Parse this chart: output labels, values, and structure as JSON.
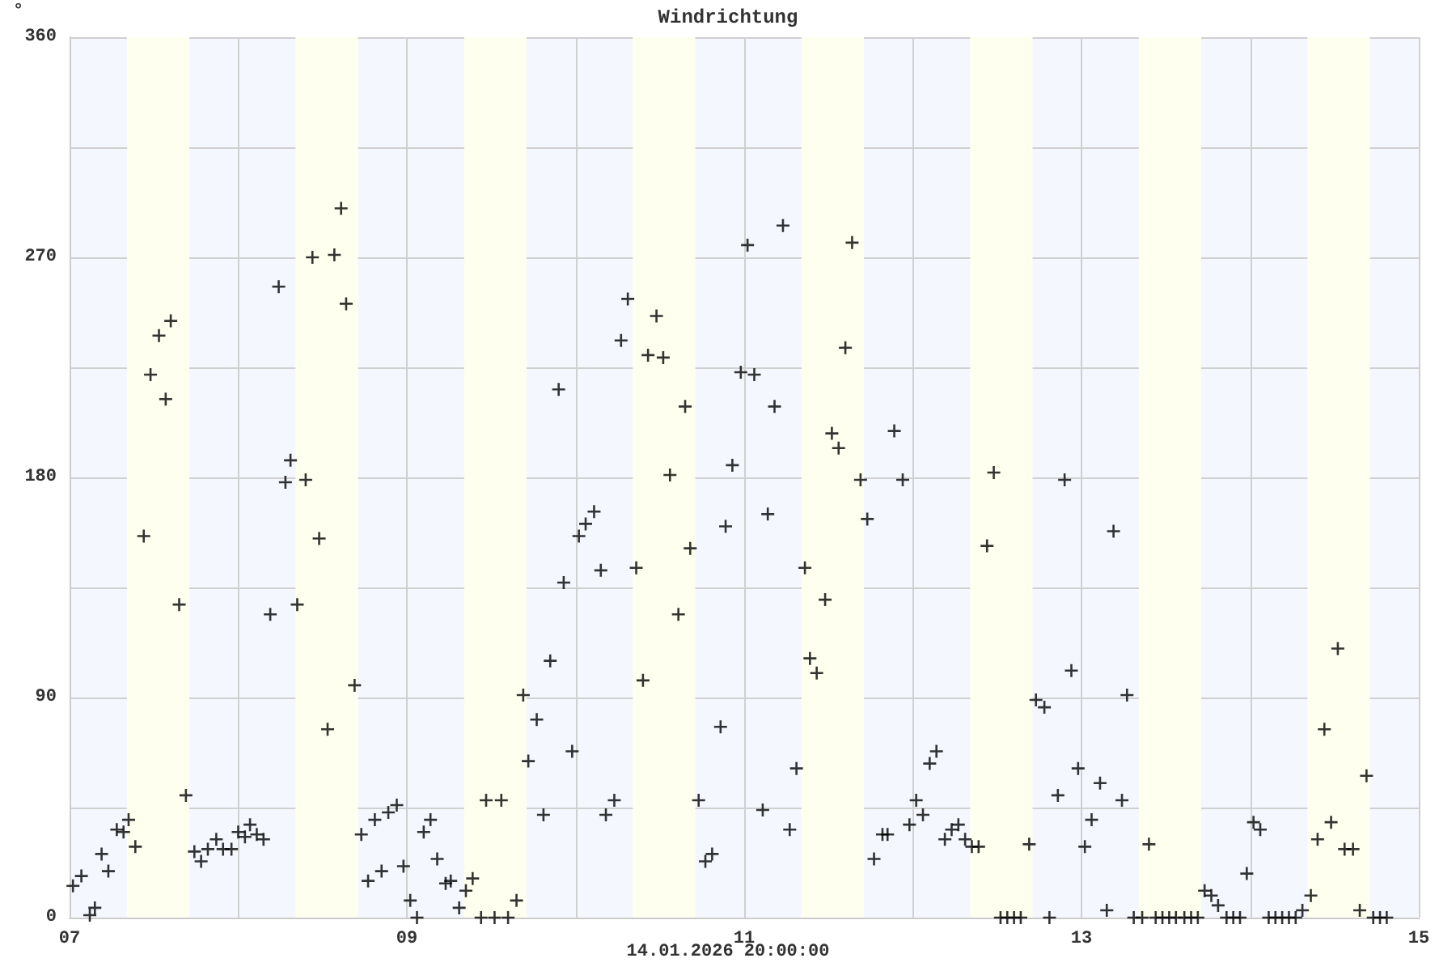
{
  "chart_data": {
    "type": "scatter",
    "title": "Windrichtung",
    "ylabel": "°",
    "xlabel": "14.01.2026 20:00:00",
    "marker": "cross",
    "grid": true,
    "xlim": [
      7,
      15
    ],
    "xticks": [
      {
        "value": 7,
        "label": "07"
      },
      {
        "value": 8,
        "label": null
      },
      {
        "value": 9,
        "label": "09"
      },
      {
        "value": 10,
        "label": null
      },
      {
        "value": 11,
        "label": "11"
      },
      {
        "value": 12,
        "label": null
      },
      {
        "value": 13,
        "label": "13"
      },
      {
        "value": 14,
        "label": null
      },
      {
        "value": 15,
        "label": "15"
      }
    ],
    "ylim": [
      0,
      360
    ],
    "yticks": [
      0,
      {
        "value": 45,
        "label": null
      },
      90,
      {
        "value": 135,
        "label": null
      },
      180,
      {
        "value": 225,
        "label": null
      },
      270,
      {
        "value": 315,
        "label": null
      },
      360
    ],
    "bands": [
      {
        "axis": "x",
        "from": 7.34,
        "to": 7.71,
        "color": "#fffff0"
      },
      {
        "axis": "x",
        "from": 8.34,
        "to": 8.71,
        "color": "#fffff0"
      },
      {
        "axis": "x",
        "from": 9.34,
        "to": 9.71,
        "color": "#fffff0"
      },
      {
        "axis": "x",
        "from": 10.34,
        "to": 10.71,
        "color": "#fffff0"
      },
      {
        "axis": "x",
        "from": 11.34,
        "to": 11.71,
        "color": "#fffff0"
      },
      {
        "axis": "x",
        "from": 12.34,
        "to": 12.71,
        "color": "#fffff0"
      },
      {
        "axis": "x",
        "from": 13.34,
        "to": 13.71,
        "color": "#fffff0"
      },
      {
        "axis": "x",
        "from": 14.34,
        "to": 14.71,
        "color": "#fffff0"
      }
    ],
    "series": [
      {
        "color": "#000000",
        "x": [
          7.02,
          7.07,
          7.12,
          7.15,
          7.19,
          7.23,
          7.28,
          7.32,
          7.35,
          7.39,
          7.44,
          7.48,
          7.53,
          7.57,
          7.6,
          7.65,
          7.69,
          7.74,
          7.78,
          7.82,
          7.87,
          7.91,
          7.96,
          8.0,
          8.04,
          8.07,
          8.11,
          8.15,
          8.19,
          8.24,
          8.28,
          8.31,
          8.35,
          8.4,
          8.44,
          8.48,
          8.53,
          8.57,
          8.61,
          8.64,
          8.69,
          8.73,
          8.77,
          8.81,
          8.85,
          8.89,
          8.94,
          8.98,
          9.02,
          9.06,
          9.1,
          9.14,
          9.18,
          9.23,
          9.26,
          9.31,
          9.35,
          9.39,
          9.44,
          9.47,
          9.52,
          9.56,
          9.6,
          9.65,
          9.69,
          9.72,
          9.77,
          9.81,
          9.85,
          9.9,
          9.93,
          9.98,
          10.02,
          10.06,
          10.11,
          10.15,
          10.18,
          10.23,
          10.27,
          10.31,
          10.36,
          10.4,
          10.43,
          10.48,
          10.52,
          10.56,
          10.61,
          10.65,
          10.68,
          10.73,
          10.77,
          10.81,
          10.86,
          10.89,
          10.93,
          10.98,
          11.02,
          11.06,
          11.11,
          11.14,
          11.18,
          11.23,
          11.27,
          11.31,
          11.36,
          11.39,
          11.43,
          11.48,
          11.52,
          11.56,
          11.6,
          11.64,
          11.69,
          11.73,
          11.77,
          11.82,
          11.85,
          11.89,
          11.94,
          11.98,
          12.02,
          12.06,
          12.1,
          12.14,
          12.19,
          12.23,
          12.27,
          12.31,
          12.35,
          12.39,
          12.44,
          12.48,
          12.52,
          12.56,
          12.6,
          12.64,
          12.69,
          12.73,
          12.78,
          12.81,
          12.86,
          12.9,
          12.94,
          12.98,
          13.02,
          13.06,
          13.11,
          13.15,
          13.19,
          13.24,
          13.27,
          13.31,
          13.36,
          13.4,
          13.44,
          13.48,
          13.52,
          13.56,
          13.61,
          13.65,
          13.69,
          13.73,
          13.77,
          13.81,
          13.86,
          13.9,
          13.94,
          13.98,
          14.02,
          14.06,
          14.11,
          14.15,
          14.19,
          14.23,
          14.27,
          14.31,
          14.36,
          14.4,
          14.44,
          14.48,
          14.52,
          14.56,
          14.61,
          14.65,
          14.69,
          14.73,
          14.77,
          14.81
        ],
        "values": [
          13,
          17,
          1,
          4,
          26,
          19,
          36,
          35,
          40,
          29,
          156,
          222,
          238,
          212,
          244,
          128,
          50,
          27,
          23,
          28,
          32,
          28,
          28,
          35,
          33,
          38,
          34,
          32,
          124,
          258,
          178,
          187,
          128,
          179,
          270,
          155,
          77,
          271,
          290,
          251,
          95,
          34,
          15,
          40,
          19,
          43,
          46,
          21,
          7,
          0,
          35,
          40,
          24,
          14,
          15,
          4,
          11,
          16,
          0,
          48,
          0,
          48,
          0,
          7,
          91,
          64,
          81,
          42,
          105,
          216,
          137,
          68,
          156,
          161,
          166,
          142,
          42,
          48,
          236,
          253,
          143,
          97,
          230,
          246,
          229,
          181,
          124,
          209,
          151,
          48,
          23,
          26,
          78,
          160,
          185,
          223,
          275,
          222,
          44,
          165,
          209,
          283,
          36,
          61,
          143,
          106,
          100,
          130,
          198,
          192,
          233,
          276,
          179,
          163,
          24,
          34,
          34,
          199,
          179,
          38,
          48,
          42,
          63,
          68,
          32,
          36,
          38,
          32,
          29,
          29,
          152,
          182,
          0,
          0,
          0,
          0,
          30,
          89,
          86,
          0,
          50,
          179,
          101,
          61,
          29,
          40,
          55,
          3,
          158,
          48,
          91,
          0,
          0,
          30,
          0,
          0,
          0,
          0,
          0,
          0,
          0,
          11,
          9,
          5,
          0,
          0,
          0,
          18,
          39,
          36,
          0,
          0,
          0,
          0,
          0,
          3,
          9,
          32,
          77,
          39,
          110,
          28,
          28,
          3,
          58,
          0,
          0,
          0
        ]
      }
    ]
  }
}
